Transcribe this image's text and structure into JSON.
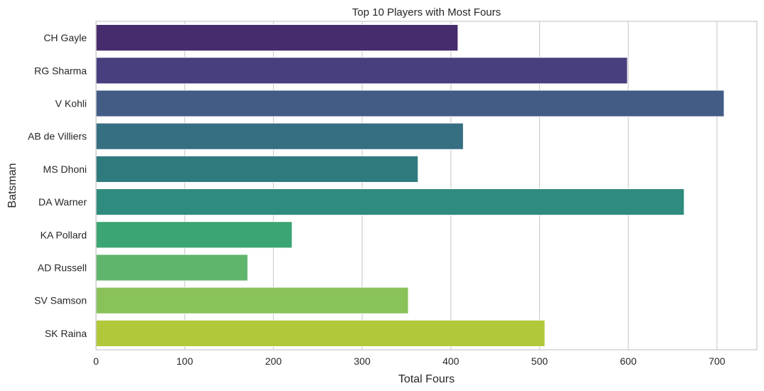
{
  "chart_data": {
    "type": "bar",
    "orientation": "horizontal",
    "title": "Top 10 Players with Most Fours",
    "xlabel": "Total Fours",
    "ylabel": "Batsman",
    "xlim": [
      0,
      745
    ],
    "xticks": [
      0,
      100,
      200,
      300,
      400,
      500,
      600,
      700
    ],
    "grid": "vertical",
    "categories": [
      "CH Gayle",
      "RG Sharma",
      "V Kohli",
      "AB de Villiers",
      "MS Dhoni",
      "DA Warner",
      "KA Pollard",
      "AD Russell",
      "SV Samson",
      "SK Raina"
    ],
    "values": [
      408,
      599,
      708,
      414,
      363,
      663,
      221,
      171,
      352,
      506
    ],
    "colors": [
      "#472c6d",
      "#483f7f",
      "#425c86",
      "#376f82",
      "#2e7a7d",
      "#2f8b7d",
      "#3ba573",
      "#5fb56c",
      "#8ac25a",
      "#b0c839"
    ]
  }
}
